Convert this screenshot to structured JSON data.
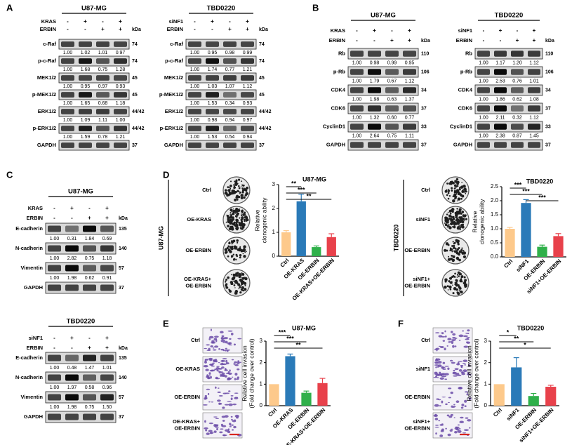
{
  "panels": {
    "A": {
      "label": "A",
      "lanes": 4,
      "kda_label": "kDa",
      "blots": [
        {
          "cell_line": "U87-MG",
          "conditions": [
            {
              "name": "KRAS",
              "signs": [
                "-",
                "+",
                "-",
                "+"
              ]
            },
            {
              "name": "ERBIN",
              "signs": [
                "-",
                "-",
                "+",
                "+"
              ]
            }
          ],
          "rows": [
            {
              "protein": "c-Raf",
              "kda": "74",
              "values": [
                "1.00",
                "1.02",
                "1.01",
                "0.97"
              ]
            },
            {
              "protein": "p-c-Raf",
              "kda": "74",
              "values": [
                "1.00",
                "1.68",
                "0.75",
                "1.28"
              ]
            },
            {
              "protein": "MEK1/2",
              "kda": "45",
              "values": [
                "1.00",
                "0.95",
                "0.97",
                "0.93"
              ]
            },
            {
              "protein": "p-MEK1/2",
              "kda": "45",
              "values": [
                "1.00",
                "1.65",
                "0.68",
                "1.18"
              ]
            },
            {
              "protein": "ERK1/2",
              "kda": "44/42",
              "values": [
                "1.00",
                "1.09",
                "1.11",
                "1.00"
              ]
            },
            {
              "protein": "p-ERK1/2",
              "kda": "44/42",
              "values": [
                "1.00",
                "1.59",
                "0.78",
                "1.21"
              ]
            },
            {
              "protein": "GAPDH",
              "kda": "37",
              "values": []
            }
          ]
        },
        {
          "cell_line": "TBD0220",
          "conditions": [
            {
              "name": "siNF1",
              "signs": [
                "-",
                "+",
                "-",
                "+"
              ]
            },
            {
              "name": "ERBIN",
              "signs": [
                "-",
                "-",
                "+",
                "+"
              ]
            }
          ],
          "rows": [
            {
              "protein": "c-Raf",
              "kda": "74",
              "values": [
                "1.00",
                "0.95",
                "0.98",
                "0.99"
              ]
            },
            {
              "protein": "p-c-Raf",
              "kda": "74",
              "values": [
                "1.00",
                "1.74",
                "0.77",
                "1.21"
              ]
            },
            {
              "protein": "MEK1/2",
              "kda": "45",
              "values": [
                "1.00",
                "1.03",
                "1.07",
                "1.12"
              ]
            },
            {
              "protein": "p-MEK1/2",
              "kda": "45",
              "values": [
                "1.00",
                "1.53",
                "0.34",
                "0.93"
              ]
            },
            {
              "protein": "ERK1/2",
              "kda": "44/42",
              "values": [
                "1.00",
                "0.98",
                "0.94",
                "0.97"
              ]
            },
            {
              "protein": "p-ERK1/2",
              "kda": "44/42",
              "values": [
                "1.00",
                "1.53",
                "0.54",
                "0.94"
              ]
            },
            {
              "protein": "GAPDH",
              "kda": "37",
              "values": []
            }
          ]
        }
      ]
    },
    "B": {
      "label": "B",
      "kda_label": "kDa",
      "blots": [
        {
          "cell_line": "U87-MG",
          "conditions": [
            {
              "name": "KRAS",
              "signs": [
                "-",
                "+",
                "-",
                "+"
              ]
            },
            {
              "name": "ERBIN",
              "signs": [
                "-",
                "-",
                "+",
                "+"
              ]
            }
          ],
          "rows": [
            {
              "protein": "Rb",
              "kda": "110",
              "values": [
                "1.00",
                "0.98",
                "0.99",
                "0.95"
              ]
            },
            {
              "protein": "p-Rb",
              "kda": "106",
              "values": [
                "1.00",
                "1.79",
                "0.67",
                "1.12"
              ]
            },
            {
              "protein": "CDK4",
              "kda": "34",
              "values": [
                "1.00",
                "1.98",
                "0.63",
                "1.37"
              ]
            },
            {
              "protein": "CDK6",
              "kda": "37",
              "values": [
                "1.00",
                "1.32",
                "0.60",
                "0.77"
              ]
            },
            {
              "protein": "CyclinD1",
              "kda": "33",
              "values": [
                "1.00",
                "2.64",
                "0.75",
                "1.11"
              ]
            },
            {
              "protein": "GAPDH",
              "kda": "37",
              "values": []
            }
          ]
        },
        {
          "cell_line": "TBD0220",
          "conditions": [
            {
              "name": "siNF1",
              "signs": [
                "-",
                "+",
                "-",
                "+"
              ]
            },
            {
              "name": "ERBIN",
              "signs": [
                "-",
                "-",
                "+",
                "+"
              ]
            }
          ],
          "rows": [
            {
              "protein": "Rb",
              "kda": "110",
              "values": [
                "1.00",
                "1.17",
                "1.20",
                "1.12"
              ]
            },
            {
              "protein": "p-Rb",
              "kda": "106",
              "values": [
                "1.00",
                "2.53",
                "0.76",
                "1.01"
              ]
            },
            {
              "protein": "CDK4",
              "kda": "34",
              "values": [
                "1.00",
                "1.86",
                "0.62",
                "1.08"
              ]
            },
            {
              "protein": "CDK6",
              "kda": "37",
              "values": [
                "1.00",
                "2.11",
                "0.32",
                "1.12"
              ]
            },
            {
              "protein": "CyclinD1",
              "kda": "33",
              "values": [
                "1.00",
                "2.38",
                "0.87",
                "1.45"
              ]
            },
            {
              "protein": "GAPDH",
              "kda": "37",
              "values": []
            }
          ]
        }
      ]
    },
    "C": {
      "label": "C",
      "kda_label": "kDa",
      "blots": [
        {
          "cell_line": "U87-MG",
          "conditions": [
            {
              "name": "KRAS",
              "signs": [
                "-",
                "+",
                "-",
                "+"
              ]
            },
            {
              "name": "ERBIN",
              "signs": [
                "-",
                "-",
                "+",
                "+"
              ]
            }
          ],
          "rows": [
            {
              "protein": "E-cadherin",
              "kda": "135",
              "values": [
                "1.00",
                "0.31",
                "1.84",
                "0.69"
              ]
            },
            {
              "protein": "N-cadherin",
              "kda": "140",
              "values": [
                "1.00",
                "2.82",
                "0.75",
                "1.18"
              ]
            },
            {
              "protein": "Vimentin",
              "kda": "57",
              "values": [
                "1.00",
                "1.98",
                "0.62",
                "0.91"
              ]
            },
            {
              "protein": "GAPDH",
              "kda": "37",
              "values": []
            }
          ]
        },
        {
          "cell_line": "TBD0220",
          "conditions": [
            {
              "name": "siNF1",
              "signs": [
                "-",
                "+",
                "-",
                "+"
              ]
            },
            {
              "name": "ERBIN",
              "signs": [
                "-",
                "-",
                "+",
                "+"
              ]
            }
          ],
          "rows": [
            {
              "protein": "E-cadherin",
              "kda": "135",
              "values": [
                "1.00",
                "0.48",
                "1.47",
                "1.01"
              ]
            },
            {
              "protein": "N-cadherin",
              "kda": "140",
              "values": [
                "1.00",
                "1.97",
                "0.58",
                "0.96"
              ]
            },
            {
              "protein": "Vimentin",
              "kda": "57",
              "values": [
                "1.00",
                "1.98",
                "0.75",
                "1.50"
              ]
            },
            {
              "protein": "GAPDH",
              "kda": "37",
              "values": []
            }
          ]
        }
      ]
    },
    "D": {
      "label": "D"
    },
    "E": {
      "label": "E"
    },
    "F": {
      "label": "F"
    }
  },
  "colony_images": {
    "D_left": {
      "side_label": "U87-MG",
      "groups": [
        "Ctrl",
        "OE-KRAS",
        "OE-ERBIN",
        "OE-KRAS+\nOE-ERBIN"
      ]
    },
    "D_right": {
      "side_label": "TBD0220",
      "groups": [
        "Ctrl",
        "siNF1",
        "OE-ERBIN",
        "siNF1+\nOE-ERBIN"
      ]
    }
  },
  "invasion_images": {
    "E": {
      "groups": [
        "Ctrl",
        "OE-KRAS",
        "OE-ERBIN",
        "OE-KRAS+\nOE-ERBIN"
      ]
    },
    "F": {
      "groups": [
        "Ctrl",
        "siNF1",
        "OE-ERBIN",
        "siNF1+\nOE-ERBIN"
      ]
    }
  },
  "colors": {
    "ctrl": "#fdc98b",
    "treat": "#2a7ab8",
    "erbin": "#2fb04a",
    "combo": "#e8414b",
    "scale_bar": "#d7261e",
    "crystal_violet": "#6b4ca8"
  },
  "chart_data": [
    {
      "id": "D1",
      "type": "bar",
      "title": "U87-MG",
      "ylabel": "Relative\nclonogenic ability",
      "xlabel": "",
      "categories": [
        "Ctrl",
        "OE-KRAS",
        "OE-ERBIN",
        "OE-KRAS+OE-ERBIN"
      ],
      "values": [
        1.0,
        2.3,
        0.38,
        0.8
      ],
      "errors": [
        0.07,
        0.3,
        0.05,
        0.14
      ],
      "ylim": [
        0,
        3
      ],
      "yticks": [
        "0",
        "1",
        "2",
        "3"
      ],
      "significance": [
        {
          "from": 0,
          "to": 1,
          "label": "**"
        },
        {
          "from": 0,
          "to": 2,
          "label": "***"
        },
        {
          "from": 0,
          "to": 3,
          "label": "**"
        }
      ]
    },
    {
      "id": "D2",
      "type": "bar",
      "title": "TBD0220",
      "ylabel": "Relative\nclonogenic ability",
      "xlabel": "",
      "categories": [
        "Ctrl",
        "siNF1",
        "OE-ERBIN",
        "siNF1+OE-ERBIN"
      ],
      "values": [
        1.0,
        1.92,
        0.36,
        0.74
      ],
      "errors": [
        0.05,
        0.12,
        0.06,
        0.09
      ],
      "ylim": [
        0,
        2.5
      ],
      "yticks": [
        "0.0",
        "0.5",
        "1.0",
        "1.5",
        "2.0",
        "2.5"
      ],
      "significance": [
        {
          "from": 0,
          "to": 1,
          "label": "***"
        },
        {
          "from": 0,
          "to": 2,
          "label": "***"
        },
        {
          "from": 1,
          "to": 3,
          "label": "***"
        }
      ]
    },
    {
      "id": "E",
      "type": "bar",
      "title": "U87-MG",
      "ylabel": "Relative cell invasion\n(Fold change over control)",
      "xlabel": "",
      "categories": [
        "Ctrl",
        "OE-KRAS",
        "OE-ERBIN",
        "OE-KRAS+OE-ERBIN"
      ],
      "values": [
        1.0,
        2.3,
        0.6,
        1.05
      ],
      "errors": [
        0.0,
        0.1,
        0.08,
        0.22
      ],
      "ylim": [
        0,
        3
      ],
      "yticks": [
        "0",
        "1",
        "2",
        "3"
      ],
      "significance": [
        {
          "from": 0,
          "to": 1,
          "label": "***"
        },
        {
          "from": 0,
          "to": 2,
          "label": "***"
        },
        {
          "from": 0,
          "to": 3,
          "label": "**"
        }
      ]
    },
    {
      "id": "F",
      "type": "bar",
      "title": "TBD0220",
      "ylabel": "Relative cell invasion\n(Fold change over control)",
      "xlabel": "",
      "categories": [
        "Ctrl",
        "siNF1",
        "OE-ERBIN",
        "siNF1+OE-ERBIN"
      ],
      "values": [
        1.0,
        1.78,
        0.45,
        0.88
      ],
      "errors": [
        0.0,
        0.45,
        0.12,
        0.07
      ],
      "ylim": [
        0,
        3
      ],
      "yticks": [
        "0",
        "1",
        "2",
        "3"
      ],
      "significance": [
        {
          "from": 0,
          "to": 1,
          "label": "*"
        },
        {
          "from": 0,
          "to": 2,
          "label": "**"
        },
        {
          "from": 0,
          "to": 3,
          "label": "*"
        }
      ]
    }
  ]
}
